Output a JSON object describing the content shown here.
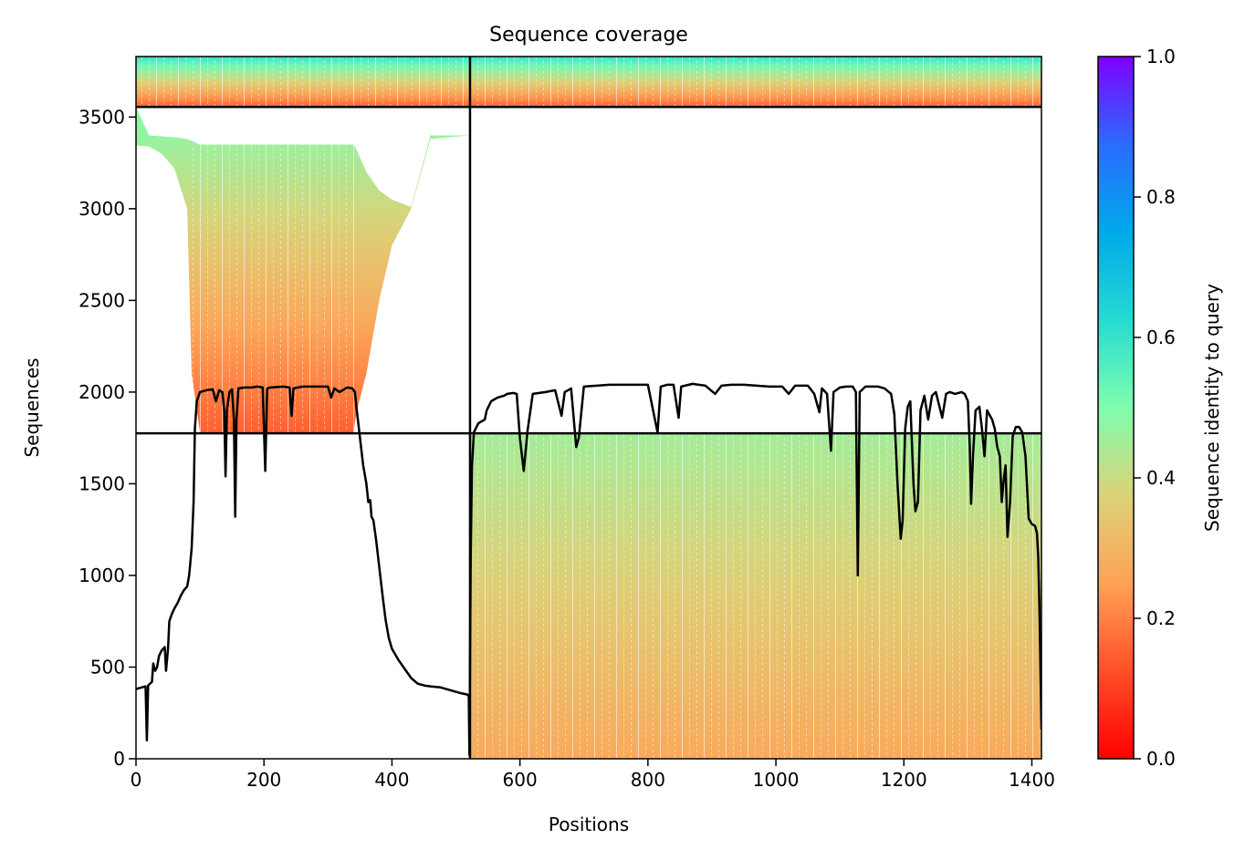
{
  "chart_data": {
    "type": "heatmap",
    "title": "Sequence coverage",
    "xlabel": "Positions",
    "ylabel": "Sequences",
    "xlim": [
      0,
      1415
    ],
    "ylim": [
      0,
      3830
    ],
    "xticks": [
      0,
      200,
      400,
      600,
      800,
      1000,
      1200,
      1400
    ],
    "yticks": [
      0,
      500,
      1000,
      1500,
      2000,
      2500,
      3000,
      3500
    ],
    "grid": false,
    "divider_x": 522,
    "divider_y": [
      1775,
      3555
    ],
    "blocks": [
      {
        "name": "upper-left",
        "x_range": [
          0,
          522
        ],
        "y_range": [
          1775,
          3555
        ],
        "identity_range": [
          0.15,
          0.5
        ],
        "coverage_profile": [
          [
            0,
            3345,
            3555
          ],
          [
            20,
            3340,
            3400
          ],
          [
            40,
            3300,
            3395
          ],
          [
            60,
            3220,
            3390
          ],
          [
            80,
            3000,
            3380
          ],
          [
            87,
            2100,
            3370
          ],
          [
            100,
            1780,
            3350
          ],
          [
            200,
            1780,
            3350
          ],
          [
            300,
            1780,
            3350
          ],
          [
            340,
            1780,
            3350
          ],
          [
            345,
            1900,
            3320
          ],
          [
            360,
            2100,
            3200
          ],
          [
            380,
            2500,
            3100
          ],
          [
            400,
            2800,
            3050
          ],
          [
            430,
            3000,
            3010
          ],
          [
            460,
            3380,
            3400
          ],
          [
            522,
            3400,
            3400
          ]
        ]
      },
      {
        "name": "lower-right",
        "x_range": [
          522,
          1415
        ],
        "y_range": [
          0,
          1775
        ],
        "identity_range": [
          0.27,
          0.45
        ]
      },
      {
        "name": "top-strip",
        "x_range": [
          0,
          1415
        ],
        "y_range": [
          3555,
          3830
        ],
        "identity_range": [
          0.15,
          0.6
        ]
      }
    ],
    "series": [
      {
        "type": "line",
        "points": [
          [
            0,
            380
          ],
          [
            5,
            385
          ],
          [
            10,
            390
          ],
          [
            15,
            395
          ],
          [
            17,
            100
          ],
          [
            19,
            400
          ],
          [
            22,
            410
          ],
          [
            25,
            420
          ],
          [
            27,
            520
          ],
          [
            30,
            480
          ],
          [
            33,
            500
          ],
          [
            36,
            560
          ],
          [
            40,
            590
          ],
          [
            45,
            610
          ],
          [
            47,
            480
          ],
          [
            50,
            600
          ],
          [
            52,
            750
          ],
          [
            56,
            790
          ],
          [
            60,
            820
          ],
          [
            65,
            850
          ],
          [
            70,
            890
          ],
          [
            75,
            920
          ],
          [
            80,
            940
          ],
          [
            83,
            1000
          ],
          [
            87,
            1150
          ],
          [
            90,
            1400
          ],
          [
            92,
            1800
          ],
          [
            95,
            1950
          ],
          [
            100,
            2000
          ],
          [
            110,
            2010
          ],
          [
            120,
            2015
          ],
          [
            125,
            1950
          ],
          [
            130,
            2010
          ],
          [
            135,
            2000
          ],
          [
            138,
            1900
          ],
          [
            140,
            1540
          ],
          [
            142,
            1900
          ],
          [
            146,
            2000
          ],
          [
            150,
            2015
          ],
          [
            153,
            1850
          ],
          [
            155,
            1320
          ],
          [
            157,
            1850
          ],
          [
            160,
            2020
          ],
          [
            170,
            2025
          ],
          [
            180,
            2025
          ],
          [
            190,
            2030
          ],
          [
            198,
            2025
          ],
          [
            202,
            1570
          ],
          [
            205,
            2020
          ],
          [
            210,
            2025
          ],
          [
            230,
            2030
          ],
          [
            240,
            2025
          ],
          [
            243,
            1870
          ],
          [
            246,
            2020
          ],
          [
            260,
            2030
          ],
          [
            280,
            2030
          ],
          [
            300,
            2030
          ],
          [
            305,
            1970
          ],
          [
            310,
            2020
          ],
          [
            318,
            2000
          ],
          [
            330,
            2025
          ],
          [
            338,
            2020
          ],
          [
            342,
            2000
          ],
          [
            345,
            1900
          ],
          [
            350,
            1750
          ],
          [
            355,
            1600
          ],
          [
            360,
            1500
          ],
          [
            363,
            1400
          ],
          [
            366,
            1410
          ],
          [
            368,
            1320
          ],
          [
            371,
            1300
          ],
          [
            375,
            1200
          ],
          [
            380,
            1050
          ],
          [
            385,
            900
          ],
          [
            390,
            760
          ],
          [
            395,
            660
          ],
          [
            400,
            600
          ],
          [
            410,
            540
          ],
          [
            420,
            490
          ],
          [
            430,
            440
          ],
          [
            440,
            410
          ],
          [
            450,
            400
          ],
          [
            460,
            395
          ],
          [
            475,
            390
          ],
          [
            490,
            375
          ],
          [
            505,
            360
          ],
          [
            518,
            350
          ],
          [
            520,
            340
          ],
          [
            521,
            20
          ],
          [
            523,
            1100
          ],
          [
            525,
            1600
          ],
          [
            528,
            1780
          ],
          [
            535,
            1830
          ],
          [
            545,
            1850
          ],
          [
            548,
            1900
          ],
          [
            555,
            1950
          ],
          [
            565,
            1970
          ],
          [
            575,
            1980
          ],
          [
            580,
            1990
          ],
          [
            590,
            1995
          ],
          [
            595,
            1990
          ],
          [
            600,
            1750
          ],
          [
            606,
            1570
          ],
          [
            612,
            1790
          ],
          [
            620,
            1990
          ],
          [
            640,
            2000
          ],
          [
            655,
            2010
          ],
          [
            665,
            1870
          ],
          [
            670,
            2000
          ],
          [
            680,
            2020
          ],
          [
            688,
            1700
          ],
          [
            692,
            1750
          ],
          [
            700,
            2030
          ],
          [
            720,
            2035
          ],
          [
            740,
            2040
          ],
          [
            760,
            2040
          ],
          [
            780,
            2040
          ],
          [
            800,
            2040
          ],
          [
            815,
            1780
          ],
          [
            820,
            2030
          ],
          [
            830,
            2040
          ],
          [
            840,
            2040
          ],
          [
            848,
            1860
          ],
          [
            852,
            2030
          ],
          [
            870,
            2045
          ],
          [
            890,
            2035
          ],
          [
            905,
            1990
          ],
          [
            915,
            2035
          ],
          [
            930,
            2040
          ],
          [
            950,
            2040
          ],
          [
            970,
            2035
          ],
          [
            990,
            2030
          ],
          [
            1010,
            2030
          ],
          [
            1020,
            1990
          ],
          [
            1030,
            2035
          ],
          [
            1050,
            2035
          ],
          [
            1060,
            1990
          ],
          [
            1068,
            1890
          ],
          [
            1072,
            2020
          ],
          [
            1080,
            1990
          ],
          [
            1086,
            1680
          ],
          [
            1090,
            2000
          ],
          [
            1100,
            2025
          ],
          [
            1110,
            2030
          ],
          [
            1120,
            2030
          ],
          [
            1125,
            2000
          ],
          [
            1128,
            1000
          ],
          [
            1131,
            2000
          ],
          [
            1140,
            2030
          ],
          [
            1160,
            2030
          ],
          [
            1170,
            2020
          ],
          [
            1180,
            1990
          ],
          [
            1185,
            1880
          ],
          [
            1190,
            1500
          ],
          [
            1195,
            1200
          ],
          [
            1198,
            1300
          ],
          [
            1202,
            1800
          ],
          [
            1206,
            1920
          ],
          [
            1210,
            1950
          ],
          [
            1215,
            1500
          ],
          [
            1218,
            1350
          ],
          [
            1222,
            1400
          ],
          [
            1226,
            1900
          ],
          [
            1232,
            1980
          ],
          [
            1238,
            1850
          ],
          [
            1244,
            1980
          ],
          [
            1250,
            2000
          ],
          [
            1260,
            1860
          ],
          [
            1266,
            1990
          ],
          [
            1272,
            2000
          ],
          [
            1280,
            1990
          ],
          [
            1290,
            2000
          ],
          [
            1295,
            1990
          ],
          [
            1300,
            1950
          ],
          [
            1303,
            1700
          ],
          [
            1305,
            1390
          ],
          [
            1308,
            1650
          ],
          [
            1312,
            1900
          ],
          [
            1318,
            1920
          ],
          [
            1322,
            1800
          ],
          [
            1326,
            1650
          ],
          [
            1330,
            1900
          ],
          [
            1338,
            1850
          ],
          [
            1342,
            1800
          ],
          [
            1346,
            1700
          ],
          [
            1350,
            1650
          ],
          [
            1353,
            1400
          ],
          [
            1356,
            1520
          ],
          [
            1359,
            1600
          ],
          [
            1362,
            1210
          ],
          [
            1366,
            1400
          ],
          [
            1370,
            1760
          ],
          [
            1375,
            1810
          ],
          [
            1380,
            1810
          ],
          [
            1385,
            1780
          ],
          [
            1390,
            1650
          ],
          [
            1395,
            1310
          ],
          [
            1400,
            1280
          ],
          [
            1405,
            1270
          ],
          [
            1408,
            1230
          ],
          [
            1410,
            1100
          ],
          [
            1412,
            800
          ],
          [
            1415,
            160
          ]
        ]
      }
    ],
    "colorbar": {
      "label": "Sequence identity to query",
      "ticks": [
        0.0,
        0.2,
        0.4,
        0.6,
        0.8,
        1.0
      ],
      "tick_labels": [
        "0.0",
        "0.2",
        "0.4",
        "0.6",
        "0.8",
        "1.0"
      ],
      "range": [
        0.0,
        1.0
      ],
      "colormap": "rainbow_r",
      "colors": [
        "#ff0000",
        "#ff4f28",
        "#ffa256",
        "#dcd278",
        "#7ffeaf",
        "#25dbd3",
        "#00a9ea",
        "#2a6cfe",
        "#7f00ff"
      ]
    }
  }
}
